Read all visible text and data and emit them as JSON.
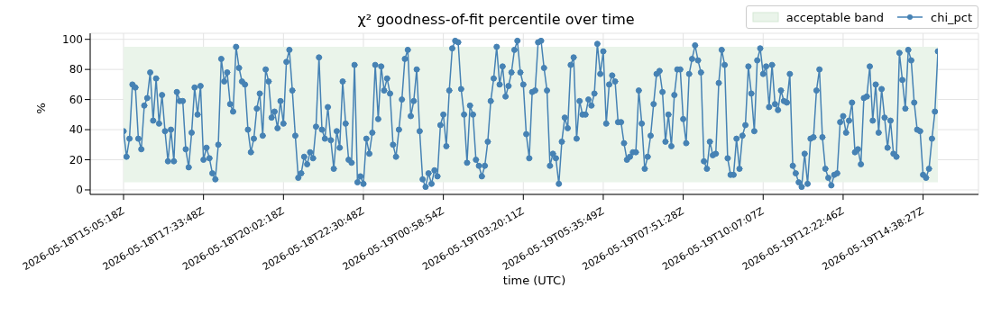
{
  "chart_data": {
    "type": "line",
    "title": "χ² goodness-of-fit percentile over time",
    "xlabel": "time (UTC)",
    "ylabel": "%",
    "categories": [
      "2026-05-18T15:05:18Z",
      null,
      null,
      null,
      null,
      null,
      null,
      null,
      null,
      null,
      null,
      null,
      null,
      null,
      null,
      null,
      null,
      null,
      null,
      null,
      null,
      null,
      null,
      null,
      null,
      null,
      null,
      "2026-05-18T17:33:48Z",
      null,
      null,
      null,
      null,
      null,
      null,
      null,
      null,
      null,
      null,
      null,
      null,
      null,
      null,
      null,
      null,
      null,
      null,
      null,
      null,
      null,
      null,
      null,
      null,
      null,
      null,
      "2026-05-18T20:02:18Z",
      null,
      null,
      null,
      null,
      null,
      null,
      null,
      null,
      null,
      null,
      null,
      null,
      null,
      null,
      null,
      null,
      null,
      null,
      null,
      null,
      null,
      null,
      null,
      null,
      null,
      null,
      "2026-05-18T22:30:48Z",
      null,
      null,
      null,
      null,
      null,
      null,
      null,
      null,
      null,
      null,
      null,
      null,
      null,
      null,
      null,
      null,
      null,
      null,
      null,
      null,
      null,
      null,
      null,
      null,
      null,
      null,
      "2026-05-19T00:58:54Z",
      null,
      null,
      null,
      null,
      null,
      null,
      null,
      null,
      null,
      null,
      null,
      null,
      null,
      null,
      null,
      null,
      null,
      null,
      null,
      null,
      null,
      null,
      null,
      null,
      null,
      null,
      "2026-05-19T03:20:11Z",
      null,
      null,
      null,
      null,
      null,
      null,
      null,
      null,
      null,
      null,
      null,
      null,
      null,
      null,
      null,
      null,
      null,
      null,
      null,
      null,
      null,
      null,
      null,
      null,
      null,
      null,
      "2026-05-19T05:35:49Z",
      null,
      null,
      null,
      null,
      null,
      null,
      null,
      null,
      null,
      null,
      null,
      null,
      null,
      null,
      null,
      null,
      null,
      null,
      null,
      null,
      null,
      null,
      null,
      null,
      null,
      null,
      "2026-05-19T07:51:28Z",
      null,
      null,
      null,
      null,
      null,
      null,
      null,
      null,
      null,
      null,
      null,
      null,
      null,
      null,
      null,
      null,
      null,
      null,
      null,
      null,
      null,
      null,
      null,
      null,
      null,
      null,
      "2026-05-19T10:07:07Z",
      null,
      null,
      null,
      null,
      null,
      null,
      null,
      null,
      null,
      null,
      null,
      null,
      null,
      null,
      null,
      null,
      null,
      null,
      null,
      null,
      null,
      null,
      null,
      null,
      null,
      null,
      "2026-05-19T12:22:46Z",
      null,
      null,
      null,
      null,
      null,
      null,
      null,
      null,
      null,
      null,
      null,
      null,
      null,
      null,
      null,
      null,
      null,
      null,
      null,
      null,
      null,
      null,
      null,
      null,
      null,
      null,
      "2026-05-19T14:38:27Z",
      null,
      null,
      null,
      null,
      null
    ],
    "series": [
      {
        "name": "chi_pct",
        "color": "#4682b4",
        "values": [
          39,
          22,
          34,
          70,
          68,
          34,
          27,
          56,
          61,
          78,
          46,
          74,
          44,
          63,
          39,
          19,
          40,
          19,
          65,
          59,
          59,
          27,
          15,
          38,
          68,
          50,
          69,
          20,
          28,
          21,
          11,
          7,
          30,
          87,
          72,
          78,
          57,
          52,
          95,
          81,
          72,
          70,
          40,
          25,
          34,
          54,
          64,
          36,
          80,
          72,
          48,
          52,
          41,
          59,
          44,
          85,
          93,
          66,
          36,
          8,
          11,
          22,
          17,
          25,
          21,
          42,
          88,
          40,
          34,
          55,
          33,
          14,
          39,
          28,
          72,
          44,
          20,
          18,
          83,
          5,
          9,
          4,
          34,
          24,
          38,
          83,
          47,
          82,
          66,
          74,
          64,
          30,
          22,
          40,
          60,
          87,
          93,
          49,
          59,
          80,
          39,
          7,
          2,
          11,
          4,
          13,
          9,
          43,
          50,
          29,
          66,
          94,
          99,
          98,
          67,
          50,
          18,
          56,
          50,
          20,
          16,
          9,
          16,
          32,
          59,
          74,
          95,
          70,
          82,
          62,
          69,
          78,
          93,
          99,
          78,
          70,
          37,
          21,
          65,
          66,
          98,
          99,
          81,
          66,
          16,
          24,
          21,
          4,
          32,
          48,
          41,
          83,
          88,
          34,
          59,
          50,
          50,
          60,
          56,
          64,
          97,
          77,
          92,
          44,
          70,
          76,
          72,
          45,
          45,
          31,
          20,
          22,
          25,
          25,
          66,
          44,
          14,
          22,
          36,
          57,
          77,
          79,
          65,
          32,
          50,
          29,
          63,
          80,
          80,
          47,
          31,
          77,
          87,
          96,
          86,
          78,
          19,
          14,
          32,
          23,
          24,
          71,
          93,
          83,
          21,
          10,
          10,
          34,
          14,
          36,
          43,
          82,
          64,
          39,
          86,
          94,
          77,
          82,
          55,
          83,
          57,
          53,
          66,
          59,
          58,
          77,
          16,
          11,
          5,
          2,
          24,
          4,
          34,
          35,
          66,
          80,
          35,
          14,
          8,
          3,
          10,
          11,
          45,
          49,
          38,
          46,
          58,
          25,
          27,
          17,
          61,
          62,
          82,
          46,
          70,
          38,
          67,
          48,
          28,
          46,
          24,
          22,
          91,
          73,
          54,
          93,
          86,
          58,
          40,
          39,
          10,
          8,
          14,
          34,
          52,
          92
        ]
      }
    ],
    "bands": [
      {
        "axis": "y",
        "from": 5,
        "to": 95,
        "label": "acceptable band",
        "color": "#eaf4ea"
      }
    ],
    "ylim": [
      -3,
      104
    ],
    "yticks": [
      0,
      20,
      40,
      60,
      80,
      100
    ],
    "grid": true,
    "legend": "top right",
    "marker": "circle",
    "line_style": "solid"
  }
}
